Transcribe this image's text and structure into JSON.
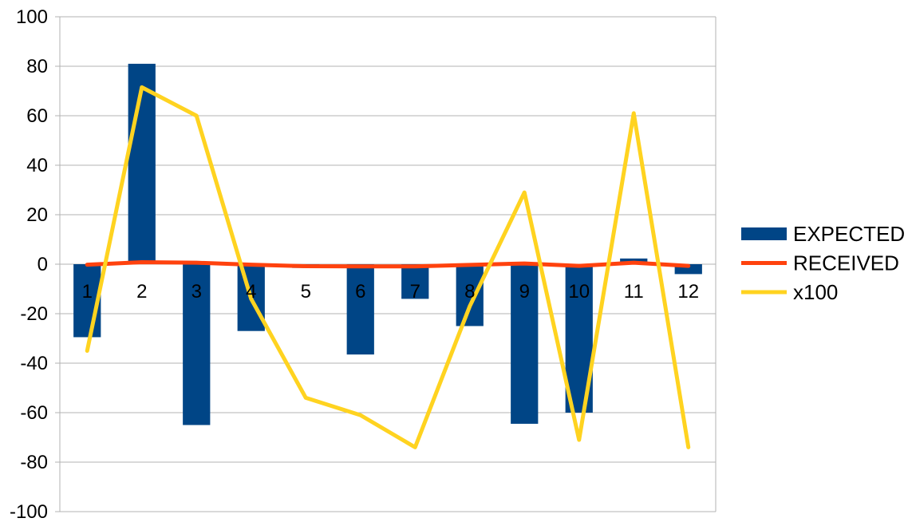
{
  "chart_data": {
    "type": "bar",
    "categories": [
      "1",
      "2",
      "3",
      "4",
      "5",
      "6",
      "7",
      "8",
      "9",
      "10",
      "11",
      "12"
    ],
    "series": [
      {
        "name": "EXPECTED",
        "kind": "bar",
        "color": "#004586",
        "values": [
          -29.5,
          81,
          -65,
          -27,
          -1.5,
          -36.5,
          -14,
          -25,
          -64.5,
          -60,
          2.3,
          -4
        ]
      },
      {
        "name": "RECEIVED",
        "kind": "line",
        "color": "#ff420e",
        "values": [
          -0.2,
          0.8,
          0.6,
          -0.2,
          -0.8,
          -0.9,
          -0.9,
          -0.3,
          0.3,
          -0.7,
          0.6,
          -0.7
        ]
      },
      {
        "name": "x100",
        "kind": "line",
        "color": "#ffd320",
        "values": [
          -35,
          71.5,
          60,
          -14,
          -54,
          -61,
          -74,
          -17,
          29,
          -71,
          61,
          -74
        ]
      }
    ],
    "title": "",
    "xlabel": "",
    "ylabel": "",
    "ylim": [
      -100,
      100
    ],
    "yticks": [
      "100",
      "80",
      "60",
      "40",
      "20",
      "0",
      "-20",
      "-40",
      "-60",
      "-80",
      "-100"
    ],
    "grid": true,
    "legend_position": "right"
  }
}
